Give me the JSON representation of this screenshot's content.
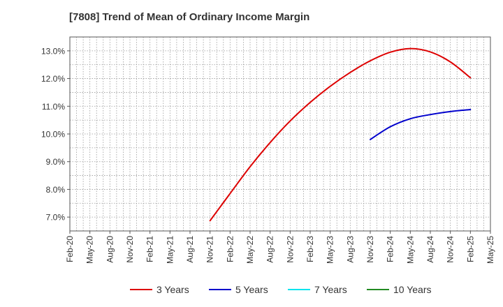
{
  "chart_data": {
    "type": "line",
    "title": "[7808]  Trend of Mean of Ordinary Income Margin",
    "xlabel": "",
    "ylabel": "",
    "x_ticks": [
      "Feb-20",
      "May-20",
      "Aug-20",
      "Nov-20",
      "Feb-21",
      "May-21",
      "Aug-21",
      "Nov-21",
      "Feb-22",
      "May-22",
      "Aug-22",
      "Nov-22",
      "Feb-23",
      "May-23",
      "Aug-23",
      "Nov-23",
      "Feb-24",
      "May-24",
      "Aug-24",
      "Nov-24",
      "Feb-25",
      "May-25"
    ],
    "y_ticks": [
      "7.0%",
      "8.0%",
      "9.0%",
      "10.0%",
      "11.0%",
      "12.0%",
      "13.0%"
    ],
    "ylim": [
      6.5,
      13.5
    ],
    "grid": true,
    "legend_position": "bottom",
    "series": [
      {
        "name": "3 Years",
        "color": "#dd0000",
        "x": [
          "Nov-21",
          "Feb-22",
          "May-22",
          "Aug-22",
          "Nov-22",
          "Feb-23",
          "May-23",
          "Aug-23",
          "Nov-23",
          "Feb-24",
          "May-24",
          "Aug-24",
          "Nov-24",
          "Feb-25"
        ],
        "values": [
          6.87,
          7.85,
          8.82,
          9.69,
          10.47,
          11.14,
          11.72,
          12.22,
          12.64,
          12.95,
          13.08,
          12.96,
          12.6,
          12.03
        ]
      },
      {
        "name": "5 Years",
        "color": "#0000cc",
        "x": [
          "Nov-23",
          "Feb-24",
          "May-24",
          "Aug-24",
          "Nov-24",
          "Feb-25"
        ],
        "values": [
          9.8,
          10.26,
          10.55,
          10.7,
          10.81,
          10.88
        ]
      },
      {
        "name": "7 Years",
        "color": "#00e5ee",
        "x": [],
        "values": []
      },
      {
        "name": "10 Years",
        "color": "#228b22",
        "x": [],
        "values": []
      }
    ]
  }
}
